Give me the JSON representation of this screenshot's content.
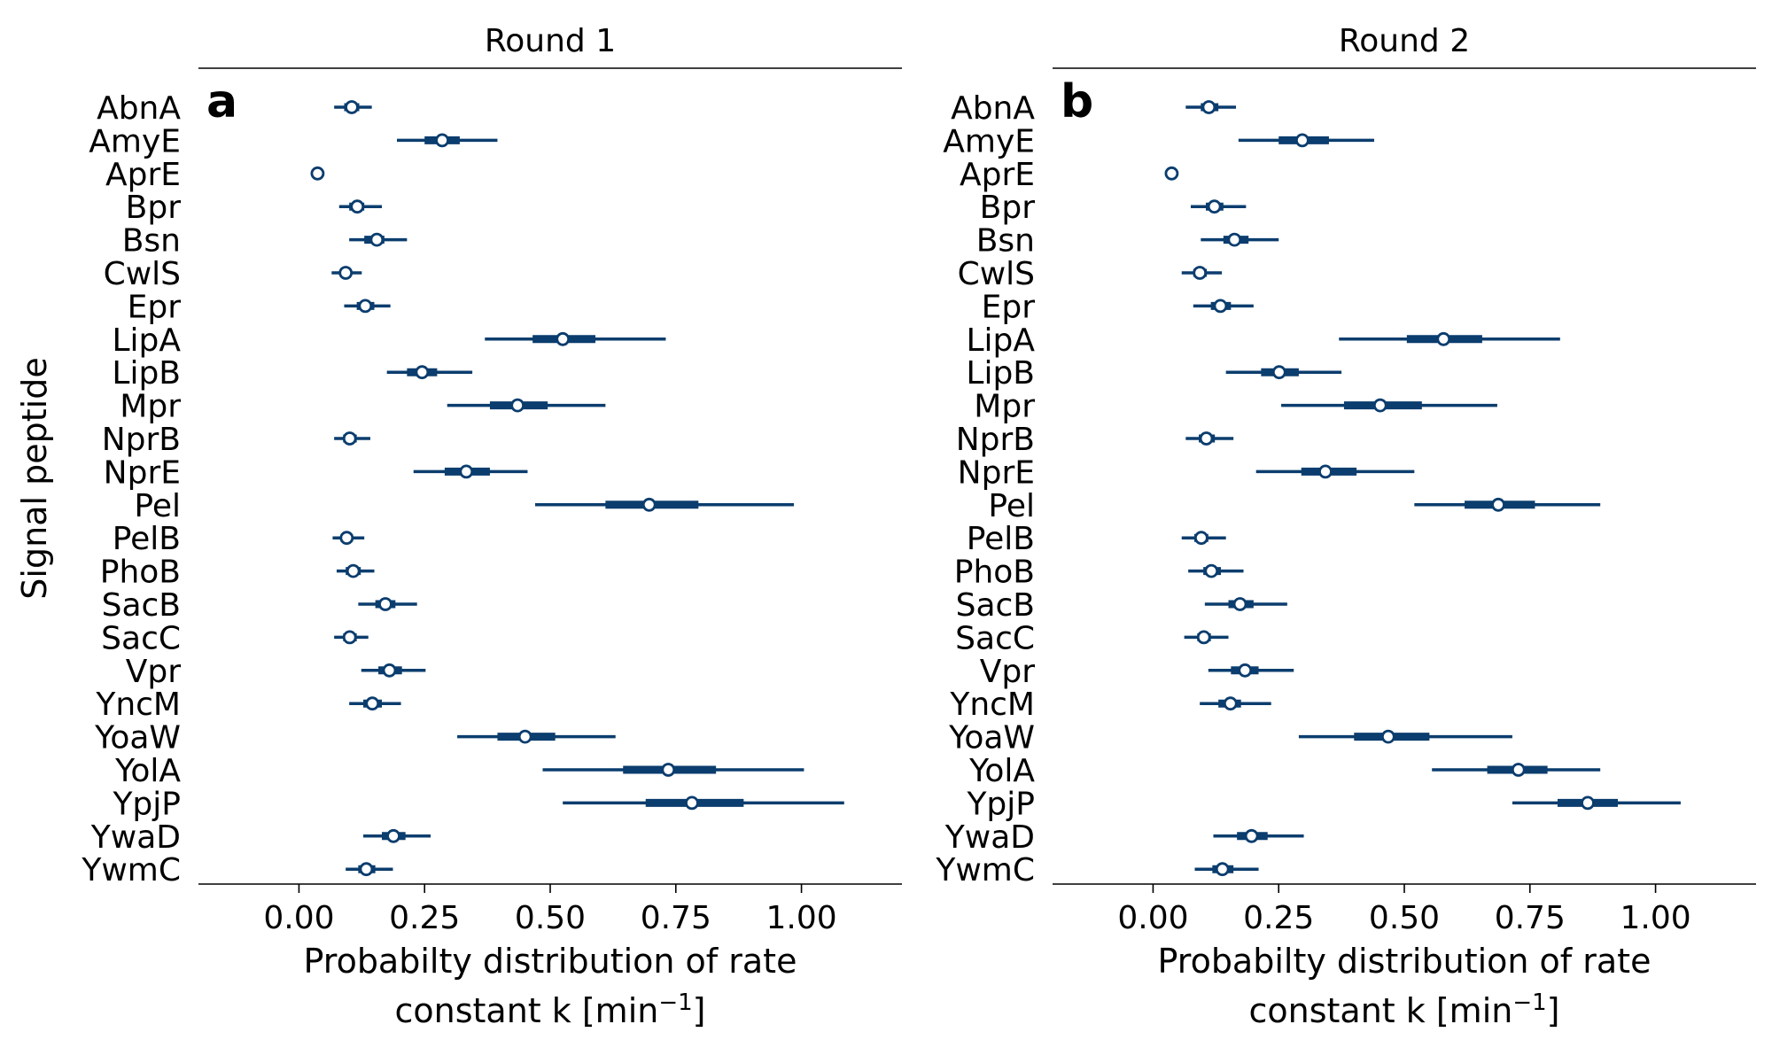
{
  "figure": {
    "ylabel": "Signal peptide",
    "xlabel_line1": "Probabilty distribution of rate",
    "xlabel_line2_prefix": "constant k [min",
    "xlabel_line2_sup": "−1",
    "xlabel_line2_suffix": "]"
  },
  "colors": {
    "series": "#0b3d6e",
    "marker_fill": "#ffffff",
    "axis": "#000000"
  },
  "chart_data": [
    {
      "type": "forest",
      "title": "Round 1",
      "panel_label": "a",
      "xlabel": "Probabilty distribution of rate constant k [min⁻¹]",
      "ylabel": "Signal peptide",
      "xlim": [
        -0.2,
        1.2
      ],
      "xticks": [
        0.0,
        0.25,
        0.5,
        0.75,
        1.0
      ],
      "xtick_labels": [
        "0.00",
        "0.25",
        "0.50",
        "0.75",
        "1.00"
      ],
      "grid": false,
      "categories": [
        "AbnA",
        "AmyE",
        "AprE",
        "Bpr",
        "Bsn",
        "CwlS",
        "Epr",
        "LipA",
        "LipB",
        "Mpr",
        "NprB",
        "NprE",
        "Pel",
        "PelB",
        "PhoB",
        "SacB",
        "SacC",
        "Vpr",
        "YncM",
        "YoaW",
        "YolA",
        "YpjP",
        "YwaD",
        "YwmC"
      ],
      "median": [
        0.105,
        0.285,
        0.037,
        0.116,
        0.155,
        0.093,
        0.132,
        0.525,
        0.245,
        0.435,
        0.101,
        0.333,
        0.697,
        0.095,
        0.108,
        0.172,
        0.101,
        0.18,
        0.146,
        0.45,
        0.735,
        0.782,
        0.188,
        0.134
      ],
      "inner": [
        [
          0.09,
          0.12
        ],
        [
          0.25,
          0.32
        ],
        [
          0.034,
          0.04
        ],
        [
          0.1,
          0.13
        ],
        [
          0.13,
          0.17
        ],
        [
          0.082,
          0.104
        ],
        [
          0.115,
          0.15
        ],
        [
          0.465,
          0.59
        ],
        [
          0.215,
          0.275
        ],
        [
          0.38,
          0.495
        ],
        [
          0.088,
          0.115
        ],
        [
          0.29,
          0.38
        ],
        [
          0.61,
          0.795
        ],
        [
          0.083,
          0.107
        ],
        [
          0.093,
          0.123
        ],
        [
          0.152,
          0.192
        ],
        [
          0.088,
          0.115
        ],
        [
          0.158,
          0.205
        ],
        [
          0.128,
          0.165
        ],
        [
          0.395,
          0.51
        ],
        [
          0.645,
          0.83
        ],
        [
          0.69,
          0.885
        ],
        [
          0.165,
          0.212
        ],
        [
          0.118,
          0.152
        ]
      ],
      "outer": [
        [
          0.07,
          0.145
        ],
        [
          0.195,
          0.395
        ],
        [
          0.032,
          0.043
        ],
        [
          0.08,
          0.165
        ],
        [
          0.1,
          0.215
        ],
        [
          0.065,
          0.125
        ],
        [
          0.09,
          0.182
        ],
        [
          0.37,
          0.73
        ],
        [
          0.175,
          0.345
        ],
        [
          0.295,
          0.61
        ],
        [
          0.07,
          0.142
        ],
        [
          0.228,
          0.455
        ],
        [
          0.47,
          0.985
        ],
        [
          0.067,
          0.13
        ],
        [
          0.075,
          0.15
        ],
        [
          0.118,
          0.235
        ],
        [
          0.07,
          0.138
        ],
        [
          0.124,
          0.252
        ],
        [
          0.1,
          0.203
        ],
        [
          0.315,
          0.63
        ],
        [
          0.485,
          1.005
        ],
        [
          0.525,
          1.085
        ],
        [
          0.128,
          0.262
        ],
        [
          0.093,
          0.187
        ]
      ]
    },
    {
      "type": "forest",
      "title": "Round 2",
      "panel_label": "b",
      "xlabel": "Probabilty distribution of rate constant k [min⁻¹]",
      "xlim": [
        -0.2,
        1.2
      ],
      "xticks": [
        0.0,
        0.25,
        0.5,
        0.75,
        1.0
      ],
      "xtick_labels": [
        "0.00",
        "0.25",
        "0.50",
        "0.75",
        "1.00"
      ],
      "grid": false,
      "categories": [
        "AbnA",
        "AmyE",
        "AprE",
        "Bpr",
        "Bsn",
        "CwlS",
        "Epr",
        "LipA",
        "LipB",
        "Mpr",
        "NprB",
        "NprE",
        "Pel",
        "PelB",
        "PhoB",
        "SacB",
        "SacC",
        "Vpr",
        "YncM",
        "YoaW",
        "YolA",
        "YpjP",
        "YwaD",
        "YwmC"
      ],
      "median": [
        0.111,
        0.297,
        0.037,
        0.122,
        0.162,
        0.093,
        0.134,
        0.578,
        0.251,
        0.452,
        0.106,
        0.343,
        0.687,
        0.096,
        0.116,
        0.173,
        0.101,
        0.183,
        0.154,
        0.468,
        0.727,
        0.865,
        0.196,
        0.138
      ],
      "inner": [
        [
          0.095,
          0.13
        ],
        [
          0.25,
          0.35
        ],
        [
          0.033,
          0.041
        ],
        [
          0.105,
          0.14
        ],
        [
          0.14,
          0.19
        ],
        [
          0.08,
          0.107
        ],
        [
          0.115,
          0.155
        ],
        [
          0.505,
          0.655
        ],
        [
          0.215,
          0.29
        ],
        [
          0.38,
          0.535
        ],
        [
          0.091,
          0.123
        ],
        [
          0.295,
          0.405
        ],
        [
          0.62,
          0.76
        ],
        [
          0.082,
          0.11
        ],
        [
          0.1,
          0.135
        ],
        [
          0.15,
          0.2
        ],
        [
          0.088,
          0.115
        ],
        [
          0.155,
          0.21
        ],
        [
          0.13,
          0.175
        ],
        [
          0.4,
          0.55
        ],
        [
          0.665,
          0.785
        ],
        [
          0.805,
          0.925
        ],
        [
          0.167,
          0.228
        ],
        [
          0.118,
          0.16
        ]
      ],
      "outer": [
        [
          0.065,
          0.165
        ],
        [
          0.17,
          0.44
        ],
        [
          0.028,
          0.05
        ],
        [
          0.075,
          0.185
        ],
        [
          0.095,
          0.25
        ],
        [
          0.057,
          0.137
        ],
        [
          0.08,
          0.2
        ],
        [
          0.37,
          0.81
        ],
        [
          0.145,
          0.375
        ],
        [
          0.255,
          0.685
        ],
        [
          0.065,
          0.16
        ],
        [
          0.205,
          0.52
        ],
        [
          0.52,
          0.89
        ],
        [
          0.057,
          0.145
        ],
        [
          0.07,
          0.18
        ],
        [
          0.103,
          0.267
        ],
        [
          0.062,
          0.15
        ],
        [
          0.11,
          0.28
        ],
        [
          0.093,
          0.235
        ],
        [
          0.29,
          0.715
        ],
        [
          0.555,
          0.89
        ],
        [
          0.715,
          1.05
        ],
        [
          0.12,
          0.3
        ],
        [
          0.083,
          0.21
        ]
      ]
    }
  ]
}
